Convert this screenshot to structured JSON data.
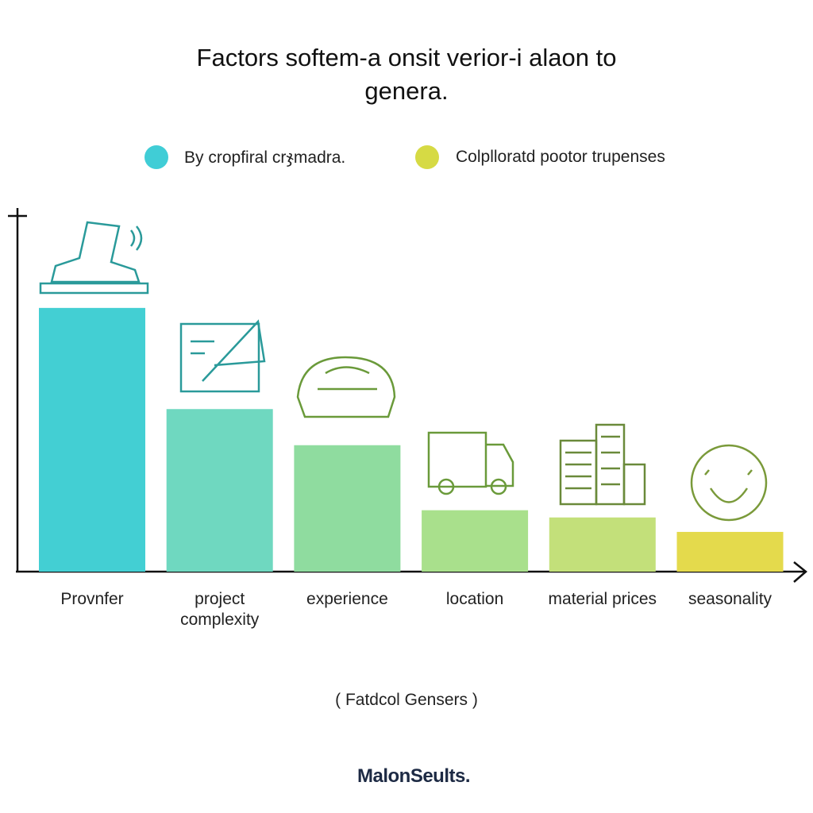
{
  "chart_data": {
    "type": "bar",
    "title": "Factors softem-a onsit verior-i alaon to genera.",
    "legend": [
      {
        "name": "By cropfiral crჯmadra.",
        "color": "#40cdd6"
      },
      {
        "name": "Colplloratd pootor trupenses",
        "color": "#d6da44"
      }
    ],
    "categories": [
      "Provnfer",
      "project complexity",
      "experience",
      "location",
      "material prices",
      "seasonality"
    ],
    "values": [
      73,
      45,
      35,
      17,
      15,
      11
    ],
    "colors": [
      "#43cfd3",
      "#6fd8c0",
      "#8fdc9f",
      "#a9e08c",
      "#c3e07a",
      "#e4da4c"
    ],
    "ylim": [
      0,
      100
    ],
    "x_label": "( Fatdcol Gensers )",
    "brand": "MalonSeults."
  }
}
